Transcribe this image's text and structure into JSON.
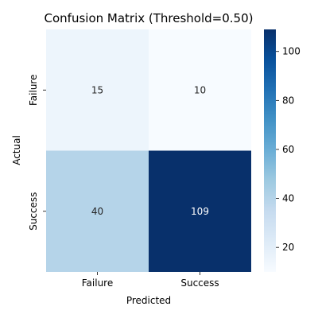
{
  "chart_data": {
    "type": "heatmap",
    "title": "Confusion Matrix (Threshold=0.50)",
    "xlabel": "Predicted",
    "ylabel": "Actual",
    "x_categories": [
      "Failure",
      "Success"
    ],
    "y_categories": [
      "Failure",
      "Success"
    ],
    "values": [
      [
        15,
        10
      ],
      [
        40,
        109
      ]
    ],
    "colormap": "Blues",
    "colorbar": {
      "range": [
        10,
        109
      ],
      "ticks": [
        "20",
        "40",
        "60",
        "80",
        "100"
      ]
    },
    "colors": {
      "low": "#f7fbff",
      "high": "#08306b"
    }
  }
}
